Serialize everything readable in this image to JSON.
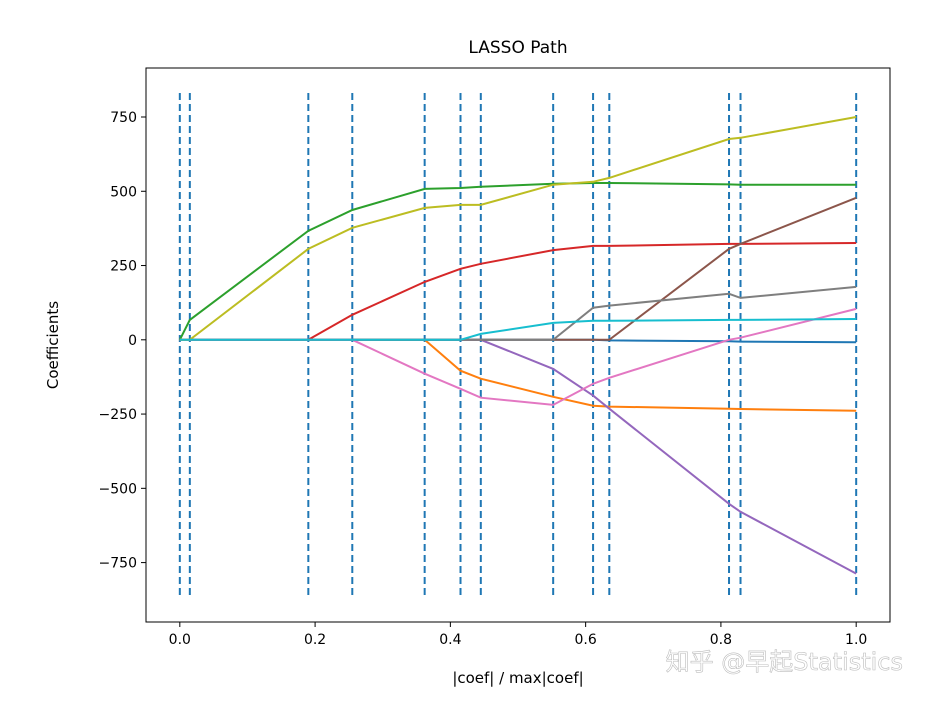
{
  "chart_data": {
    "type": "line",
    "title": "LASSO Path",
    "xlabel": "|coef| / max|coef|",
    "ylabel": "Coefficients",
    "xlim": [
      -0.05,
      1.05
    ],
    "ylim": [
      -950,
      915
    ],
    "xticks": [
      0.0,
      0.2,
      0.4,
      0.6,
      0.8,
      1.0
    ],
    "xtick_labels": [
      "0.0",
      "0.2",
      "0.4",
      "0.6",
      "0.8",
      "1.0"
    ],
    "yticks": [
      750,
      500,
      250,
      0,
      -250,
      -500,
      -750
    ],
    "ytick_labels": [
      "750",
      "500",
      "250",
      "0",
      "−250",
      "−500",
      "−750"
    ],
    "grid": false,
    "x": [
      0,
      0.0148,
      0.19,
      0.255,
      0.362,
      0.415,
      0.445,
      0.552,
      0.611,
      0.635,
      0.812,
      0.829,
      1.0
    ],
    "vlines": {
      "x": [
        0,
        0.0148,
        0.19,
        0.255,
        0.362,
        0.415,
        0.445,
        0.552,
        0.611,
        0.635,
        0.812,
        0.829,
        1.0
      ],
      "ymin": -865,
      "ymax": 831,
      "style": "dashed",
      "color": "#1f77b4"
    },
    "series": [
      {
        "color": "#1f77b4",
        "values": [
          0,
          0,
          0,
          0,
          0,
          0,
          0,
          0,
          0,
          -2,
          -5,
          -6,
          -8
        ]
      },
      {
        "color": "#ff7f0e",
        "values": [
          0,
          0,
          0,
          0,
          0,
          -104,
          -131,
          -192,
          -222,
          -225,
          -232,
          -233,
          -239
        ]
      },
      {
        "color": "#2ca02c",
        "values": [
          0,
          67,
          367,
          437,
          508,
          511,
          515,
          525,
          528,
          528,
          523,
          522,
          522
        ]
      },
      {
        "color": "#d62728",
        "values": [
          0,
          0,
          0,
          84,
          195,
          239,
          256,
          302,
          316,
          316,
          323,
          323,
          326
        ]
      },
      {
        "color": "#9467bd",
        "values": [
          0,
          0,
          0,
          0,
          0,
          0,
          0,
          -98,
          -188,
          -232,
          -552,
          -579,
          -787
        ]
      },
      {
        "color": "#8c564b",
        "values": [
          0,
          0,
          0,
          0,
          0,
          0,
          0,
          0,
          0,
          0,
          306,
          323,
          478
        ]
      },
      {
        "color": "#e377c2",
        "values": [
          0,
          0,
          0,
          0,
          -114,
          -165,
          -195,
          -219,
          -148,
          -128,
          0,
          7,
          104
        ]
      },
      {
        "color": "#7f7f7f",
        "values": [
          0,
          0,
          0,
          0,
          0,
          0,
          0,
          0,
          108,
          115,
          155,
          141,
          178
        ]
      },
      {
        "color": "#bcbd22",
        "values": [
          0,
          0,
          306,
          377,
          444,
          454,
          454,
          522,
          532,
          545,
          676,
          680,
          750
        ]
      },
      {
        "color": "#17becf",
        "values": [
          0,
          0,
          0,
          0,
          0,
          0,
          20,
          57,
          64,
          64,
          67,
          67,
          70
        ]
      }
    ]
  },
  "watermark": "知乎 @早起Statistics"
}
